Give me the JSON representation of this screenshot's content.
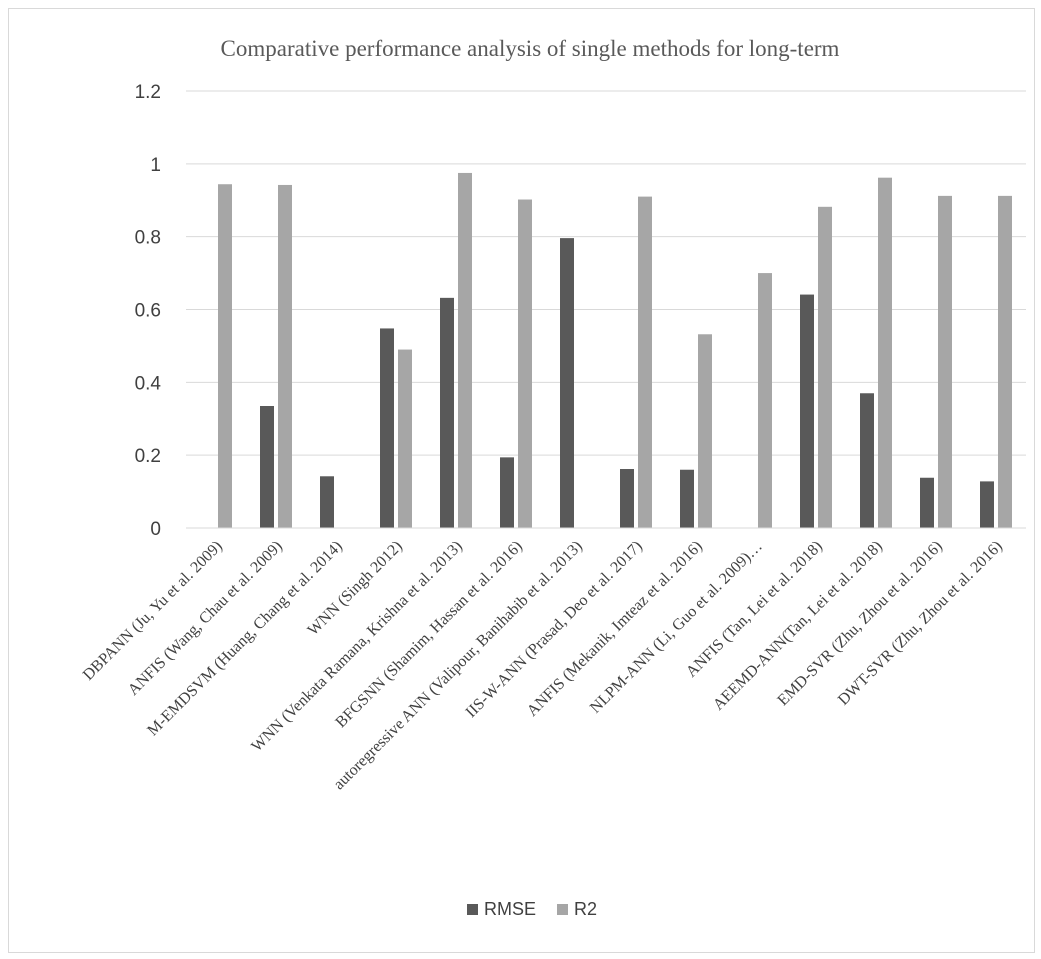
{
  "chart_data": {
    "type": "bar",
    "title": "Comparative performance analysis of single methods for long-term",
    "xlabel": "",
    "ylabel": "",
    "ylim": [
      0,
      1.2
    ],
    "yticks": [
      "0",
      "0.2",
      "0.4",
      "0.6",
      "0.8",
      "1",
      "1.2"
    ],
    "grid": true,
    "legend_position": "bottom",
    "categories": [
      "DBPANN (Ju, Yu et al. 2009)",
      "ANFIS (Wang, Chau et al. 2009)",
      "M-EMDSVM (Huang, Chang et al. 2014)",
      "WNN (Singh 2012)",
      "WNN (Venkata Ramana, Krishna et al. 2013)",
      "BFGSNN (Shamim, Hassan et al. 2016)",
      "autoregressive ANN (Valipour, Banihabib et al. 2013)",
      "IIS-W-ANN (Prasad, Deo et al. 2017)",
      "ANFIS (Mekanik, Imteaz et al. 2016)",
      "NLPM-ANN (Li, Guo et al. 2009)…",
      "ANFIS (Tan, Lei et al. 2018)",
      "AEEMD-ANN(Tan, Lei et al. 2018)",
      "EMD-SVR (Zhu, Zhou et al. 2016)",
      "DWT-SVR (Zhu, Zhou et al. 2016)"
    ],
    "series": [
      {
        "name": "RMSE",
        "color": "#595959",
        "values": [
          0,
          0.335,
          0.142,
          0.548,
          0.632,
          0.194,
          0.796,
          0.162,
          0.16,
          0,
          0.641,
          0.37,
          0.138,
          0.128
        ]
      },
      {
        "name": "R2",
        "color": "#a6a6a6",
        "values": [
          0.944,
          0.942,
          0,
          0.49,
          0.975,
          0.902,
          0,
          0.91,
          0.532,
          0.7,
          0.882,
          0.962,
          0.912,
          0.912
        ]
      }
    ]
  }
}
